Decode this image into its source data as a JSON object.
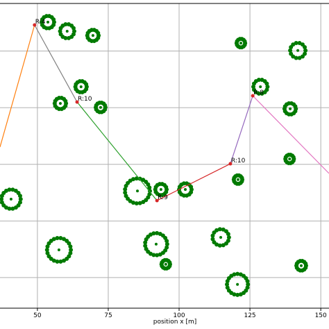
{
  "chart_data": {
    "type": "scatter",
    "x_label": "position x [m]",
    "xlim": [
      36.8,
      152.9
    ],
    "ylim": [
      -0.8,
      106.8
    ],
    "xticks": [
      50,
      75,
      100,
      125,
      150
    ],
    "ygrid": [
      10,
      30,
      50,
      70,
      90
    ],
    "grid": true,
    "obstacle_color": "#007a00",
    "obstacles": {
      "x": [
        53.7,
        60.5,
        69.6,
        121.8,
        141.9,
        65.4,
        58.1,
        72.3,
        128.7,
        139.2,
        139.0,
        85.3,
        93.6,
        102.2,
        120.8,
        40.7,
        57.6,
        91.9,
        114.7,
        95.3,
        120.6,
        143.1
      ],
      "y": [
        100.2,
        97.0,
        95.5,
        92.8,
        90.2,
        77.4,
        71.5,
        70.1,
        77.4,
        69.6,
        51.9,
        40.6,
        41.1,
        41.1,
        44.6,
        37.7,
        19.8,
        21.8,
        24.2,
        14.7,
        7.6,
        14.2
      ],
      "r": [
        2.2,
        2.5,
        2.0,
        1.5,
        2.7,
        2.0,
        2.0,
        1.7,
        2.5,
        2.0,
        1.5,
        4.4,
        2.0,
        2.2,
        1.5,
        3.4,
        4.2,
        3.9,
        2.9,
        1.5,
        3.7,
        1.7
      ]
    },
    "path": {
      "x": [
        36.8,
        49.0,
        64.0,
        92.2,
        118.1,
        126.0,
        152.9
      ],
      "y": [
        56.1,
        99.2,
        72.0,
        37.2,
        50.2,
        74.2,
        46.8
      ],
      "labels": [
        null,
        "R:4",
        "R:10",
        "R:9",
        "R:10",
        "R:8",
        null
      ],
      "waypoint_color": "#d62728",
      "segment_colors": [
        "#ff7f0e",
        "#7f7f7f",
        "#2ca02c",
        "#d62728",
        "#9467bd",
        "#e377c2"
      ]
    }
  }
}
